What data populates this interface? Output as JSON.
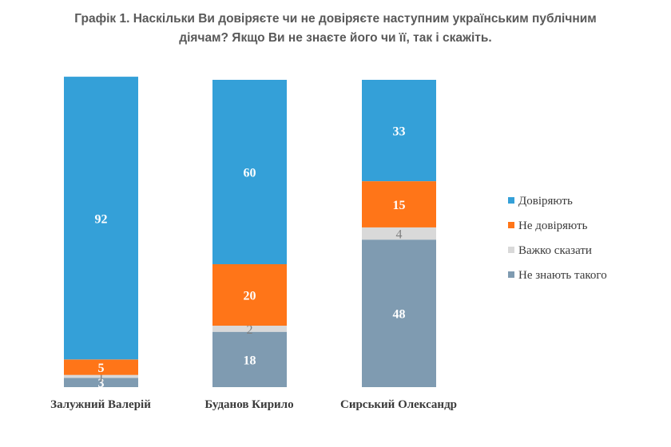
{
  "chart_data": {
    "type": "bar",
    "stacked": true,
    "title_lines": [
      "Графік 1. Наскільки Ви довіряєте чи не довіряєте наступним українським публічним",
      "діячам? Якщо Ви не знаєте його чи її, так і скажіть."
    ],
    "xlabel": "",
    "ylabel": "",
    "ylim": [
      0,
      100
    ],
    "grid": false,
    "legend_position": "right",
    "categories": [
      "Залужний Валерій",
      "Буданов Кирило",
      "Сирський Олександр"
    ],
    "series": [
      {
        "name": "Не знають такого",
        "color": "#7f9bb1",
        "label_color": "#ffffff",
        "values": [
          3,
          18,
          48
        ],
        "labels": [
          "3",
          "18",
          "48"
        ]
      },
      {
        "name": "Важко сказати",
        "color": "#d9d9d9",
        "label_color": "#7f7f7f",
        "values": [
          1,
          2,
          4
        ],
        "labels": [
          "1",
          "2",
          "4"
        ]
      },
      {
        "name": "Не довіряють",
        "color": "#ff7518",
        "label_color": "#ffffff",
        "values": [
          5,
          20,
          15
        ],
        "labels": [
          "5",
          "20",
          "15"
        ]
      },
      {
        "name": "Довіряють",
        "color": "#34a0d8",
        "label_color": "#ffffff",
        "values": [
          92,
          60,
          33
        ],
        "labels": [
          "92",
          "60",
          "33"
        ]
      }
    ],
    "legend_order": [
      "Довіряють",
      "Не довіряють",
      "Важко сказати",
      "Не знають такого"
    ]
  }
}
